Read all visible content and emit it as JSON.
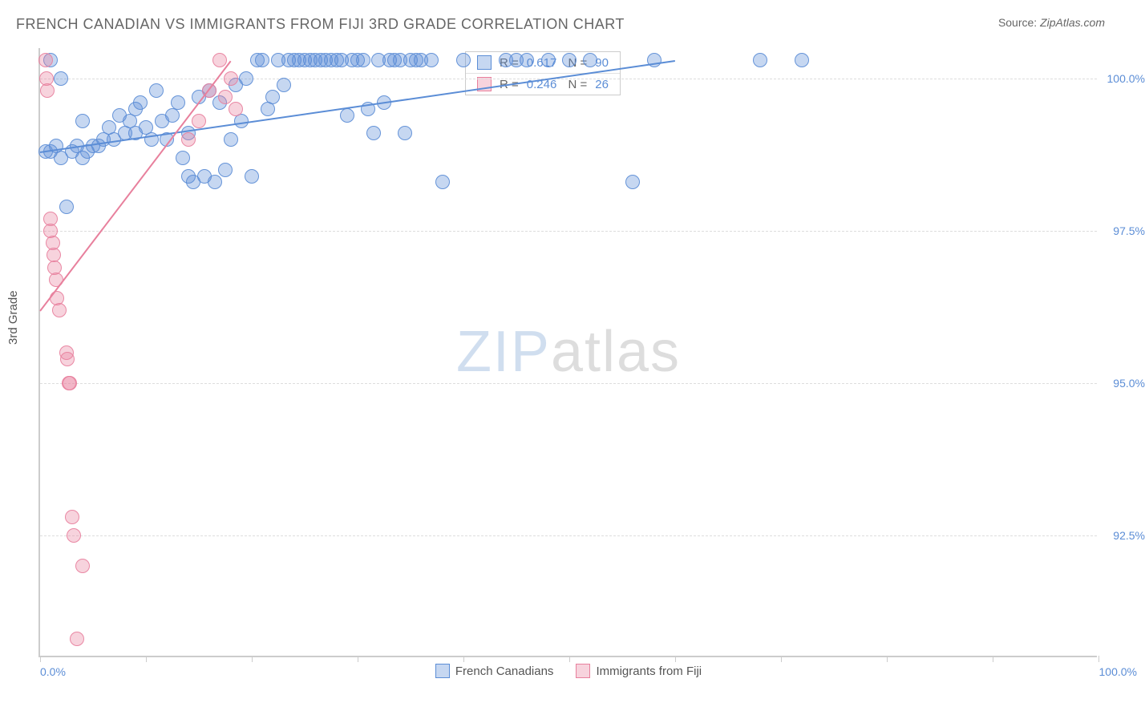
{
  "title": "FRENCH CANADIAN VS IMMIGRANTS FROM FIJI 3RD GRADE CORRELATION CHART",
  "source_label": "Source:",
  "source_value": "ZipAtlas.com",
  "yaxis_label": "3rd Grade",
  "watermark_zip": "ZIP",
  "watermark_atlas": "atlas",
  "chart": {
    "type": "scatter",
    "background_color": "#ffffff",
    "grid_color": "#dddddd",
    "axis_color": "#cccccc",
    "tick_label_color": "#5b8dd6",
    "xlim": [
      0,
      100
    ],
    "ylim": [
      90.5,
      100.5
    ],
    "yticks": [
      92.5,
      95.0,
      97.5,
      100.0
    ],
    "ytick_labels": [
      "92.5%",
      "95.0%",
      "97.5%",
      "100.0%"
    ],
    "xticks": [
      0,
      10,
      20,
      30,
      40,
      50,
      60,
      70,
      80,
      90,
      100
    ],
    "xaxis_label_left": "0.0%",
    "xaxis_label_right": "100.0%",
    "marker_radius": 9,
    "marker_fill_opacity": 0.35,
    "marker_stroke_opacity": 0.9,
    "series": [
      {
        "name": "French Canadians",
        "color": "#5b8dd6",
        "R": "0.617",
        "N": "90",
        "trend": {
          "x1": 0,
          "y1": 98.8,
          "x2": 60,
          "y2": 100.3
        },
        "points": [
          [
            0.5,
            98.8
          ],
          [
            1,
            98.8
          ],
          [
            1.5,
            98.9
          ],
          [
            2,
            98.7
          ],
          [
            2.5,
            97.9
          ],
          [
            1,
            100.3
          ],
          [
            2,
            100.0
          ],
          [
            3,
            98.8
          ],
          [
            3.5,
            98.9
          ],
          [
            4,
            98.7
          ],
          [
            4,
            99.3
          ],
          [
            4.5,
            98.8
          ],
          [
            5,
            98.9
          ],
          [
            5.5,
            98.9
          ],
          [
            6,
            99.0
          ],
          [
            6.5,
            99.2
          ],
          [
            7,
            99.0
          ],
          [
            7.5,
            99.4
          ],
          [
            8,
            99.1
          ],
          [
            8.5,
            99.3
          ],
          [
            9,
            99.1
          ],
          [
            9,
            99.5
          ],
          [
            9.5,
            99.6
          ],
          [
            10,
            99.2
          ],
          [
            10.5,
            99.0
          ],
          [
            11,
            99.8
          ],
          [
            11.5,
            99.3
          ],
          [
            12,
            99.0
          ],
          [
            12.5,
            99.4
          ],
          [
            13,
            99.6
          ],
          [
            13.5,
            98.7
          ],
          [
            14,
            99.1
          ],
          [
            14,
            98.4
          ],
          [
            14.5,
            98.3
          ],
          [
            15,
            99.7
          ],
          [
            15.5,
            98.4
          ],
          [
            16,
            99.8
          ],
          [
            16.5,
            98.3
          ],
          [
            17,
            99.6
          ],
          [
            17.5,
            98.5
          ],
          [
            18,
            99.0
          ],
          [
            18.5,
            99.9
          ],
          [
            19,
            99.3
          ],
          [
            19.5,
            100.0
          ],
          [
            20,
            98.4
          ],
          [
            20.5,
            100.3
          ],
          [
            21,
            100.3
          ],
          [
            21.5,
            99.5
          ],
          [
            22,
            99.7
          ],
          [
            22.5,
            100.3
          ],
          [
            23,
            99.9
          ],
          [
            23.5,
            100.3
          ],
          [
            24,
            100.3
          ],
          [
            24.5,
            100.3
          ],
          [
            25,
            100.3
          ],
          [
            25.5,
            100.3
          ],
          [
            26,
            100.3
          ],
          [
            26.5,
            100.3
          ],
          [
            27,
            100.3
          ],
          [
            27.5,
            100.3
          ],
          [
            28,
            100.3
          ],
          [
            28.5,
            100.3
          ],
          [
            29,
            99.4
          ],
          [
            29.5,
            100.3
          ],
          [
            30,
            100.3
          ],
          [
            30.5,
            100.3
          ],
          [
            31,
            99.5
          ],
          [
            31.5,
            99.1
          ],
          [
            32,
            100.3
          ],
          [
            32.5,
            99.6
          ],
          [
            33,
            100.3
          ],
          [
            33.5,
            100.3
          ],
          [
            34,
            100.3
          ],
          [
            34.5,
            99.1
          ],
          [
            35,
            100.3
          ],
          [
            35.5,
            100.3
          ],
          [
            36,
            100.3
          ],
          [
            37,
            100.3
          ],
          [
            38,
            98.3
          ],
          [
            40,
            100.3
          ],
          [
            44,
            100.3
          ],
          [
            45,
            100.3
          ],
          [
            46,
            100.3
          ],
          [
            48,
            100.3
          ],
          [
            50,
            100.3
          ],
          [
            52,
            100.3
          ],
          [
            56,
            98.3
          ],
          [
            58,
            100.3
          ],
          [
            68,
            100.3
          ],
          [
            72,
            100.3
          ]
        ]
      },
      {
        "name": "Immigrants from Fiji",
        "color": "#e8809d",
        "R": "0.246",
        "N": "26",
        "trend": {
          "x1": 0,
          "y1": 96.2,
          "x2": 18,
          "y2": 100.3
        },
        "points": [
          [
            0.5,
            100.3
          ],
          [
            0.6,
            100.0
          ],
          [
            0.7,
            99.8
          ],
          [
            1,
            97.7
          ],
          [
            1,
            97.5
          ],
          [
            1.2,
            97.3
          ],
          [
            1.3,
            97.1
          ],
          [
            1.4,
            96.9
          ],
          [
            1.5,
            96.7
          ],
          [
            1.6,
            96.4
          ],
          [
            1.8,
            96.2
          ],
          [
            2.5,
            95.5
          ],
          [
            2.6,
            95.4
          ],
          [
            2.7,
            95.0
          ],
          [
            2.8,
            95.0
          ],
          [
            3,
            92.8
          ],
          [
            3.2,
            92.5
          ],
          [
            4,
            92.0
          ],
          [
            3.5,
            90.8
          ],
          [
            16,
            99.8
          ],
          [
            17,
            100.3
          ],
          [
            17.5,
            99.7
          ],
          [
            18,
            100.0
          ],
          [
            18.5,
            99.5
          ],
          [
            14,
            99.0
          ],
          [
            15,
            99.3
          ]
        ]
      }
    ],
    "legend": {
      "items": [
        {
          "label": "French Canadians",
          "color": "#5b8dd6"
        },
        {
          "label": "Immigrants from Fiji",
          "color": "#e8809d"
        }
      ]
    }
  }
}
